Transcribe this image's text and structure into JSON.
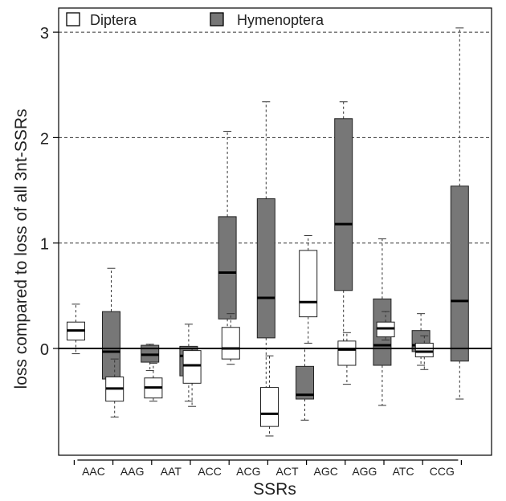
{
  "chart_data": {
    "type": "boxplot",
    "xlabel": "SSRs",
    "ylabel": "loss compared to loss of all 3nt-SSRs",
    "ylim": [
      -0.9,
      3.1
    ],
    "yticks": [
      0,
      1,
      2,
      3
    ],
    "categories": [
      "AAC",
      "AAG",
      "AAT",
      "ACC",
      "ACG",
      "ACT",
      "AGC",
      "AGG",
      "ATC",
      "CCG"
    ],
    "legend": {
      "position": "top-left"
    },
    "reference_lines": {
      "solid": [
        0
      ],
      "dashed": [
        1,
        2,
        3
      ]
    },
    "series": [
      {
        "name": "Diptera",
        "color": "#ffffff",
        "boxes": [
          {
            "min": -0.05,
            "q1": 0.08,
            "median": 0.17,
            "q3": 0.25,
            "max": 0.42
          },
          {
            "min": -0.65,
            "q1": -0.5,
            "median": -0.38,
            "q3": -0.27,
            "max": -0.1
          },
          {
            "min": -0.5,
            "q1": -0.47,
            "median": -0.37,
            "q3": -0.28,
            "max": -0.14
          },
          {
            "min": -0.55,
            "q1": -0.33,
            "median": -0.16,
            "q3": -0.02,
            "max": 0.0
          },
          {
            "min": -0.15,
            "q1": -0.1,
            "median": 0.0,
            "q3": 0.2,
            "max": 0.33
          },
          {
            "min": -0.83,
            "q1": -0.74,
            "median": -0.62,
            "q3": -0.37,
            "max": -0.07
          },
          {
            "min": 0.05,
            "q1": 0.3,
            "median": 0.44,
            "q3": 0.93,
            "max": 1.07
          },
          {
            "min": -0.34,
            "q1": -0.16,
            "median": -0.01,
            "q3": 0.07,
            "max": 0.15
          },
          {
            "min": 0.08,
            "q1": 0.11,
            "median": 0.19,
            "q3": 0.25,
            "max": 0.35
          },
          {
            "min": -0.2,
            "q1": -0.08,
            "median": -0.03,
            "q3": 0.05,
            "max": 0.12
          }
        ]
      },
      {
        "name": "Hymenoptera",
        "color": "#777777",
        "boxes": [
          {
            "min": -0.38,
            "q1": -0.29,
            "median": -0.03,
            "q3": 0.35,
            "max": 0.76
          },
          {
            "min": -0.21,
            "q1": -0.13,
            "median": -0.06,
            "q3": 0.03,
            "max": 0.04
          },
          {
            "min": -0.5,
            "q1": -0.26,
            "median": -0.07,
            "q3": 0.02,
            "max": 0.23
          },
          {
            "min": -0.05,
            "q1": 0.28,
            "median": 0.72,
            "q3": 1.25,
            "max": 2.06
          },
          {
            "min": -0.4,
            "q1": 0.1,
            "median": 0.48,
            "q3": 1.42,
            "max": 2.34
          },
          {
            "min": -0.68,
            "q1": -0.48,
            "median": -0.44,
            "q3": -0.17,
            "max": 0.0
          },
          {
            "min": 0.04,
            "q1": 0.55,
            "median": 1.18,
            "q3": 2.18,
            "max": 2.34
          },
          {
            "min": -0.54,
            "q1": -0.16,
            "median": 0.03,
            "q3": 0.47,
            "max": 1.04
          },
          {
            "min": -0.16,
            "q1": -0.03,
            "median": 0.03,
            "q3": 0.17,
            "max": 0.33
          },
          {
            "min": -0.48,
            "q1": -0.12,
            "median": 0.45,
            "q3": 1.54,
            "max": 3.04
          }
        ]
      }
    ]
  }
}
